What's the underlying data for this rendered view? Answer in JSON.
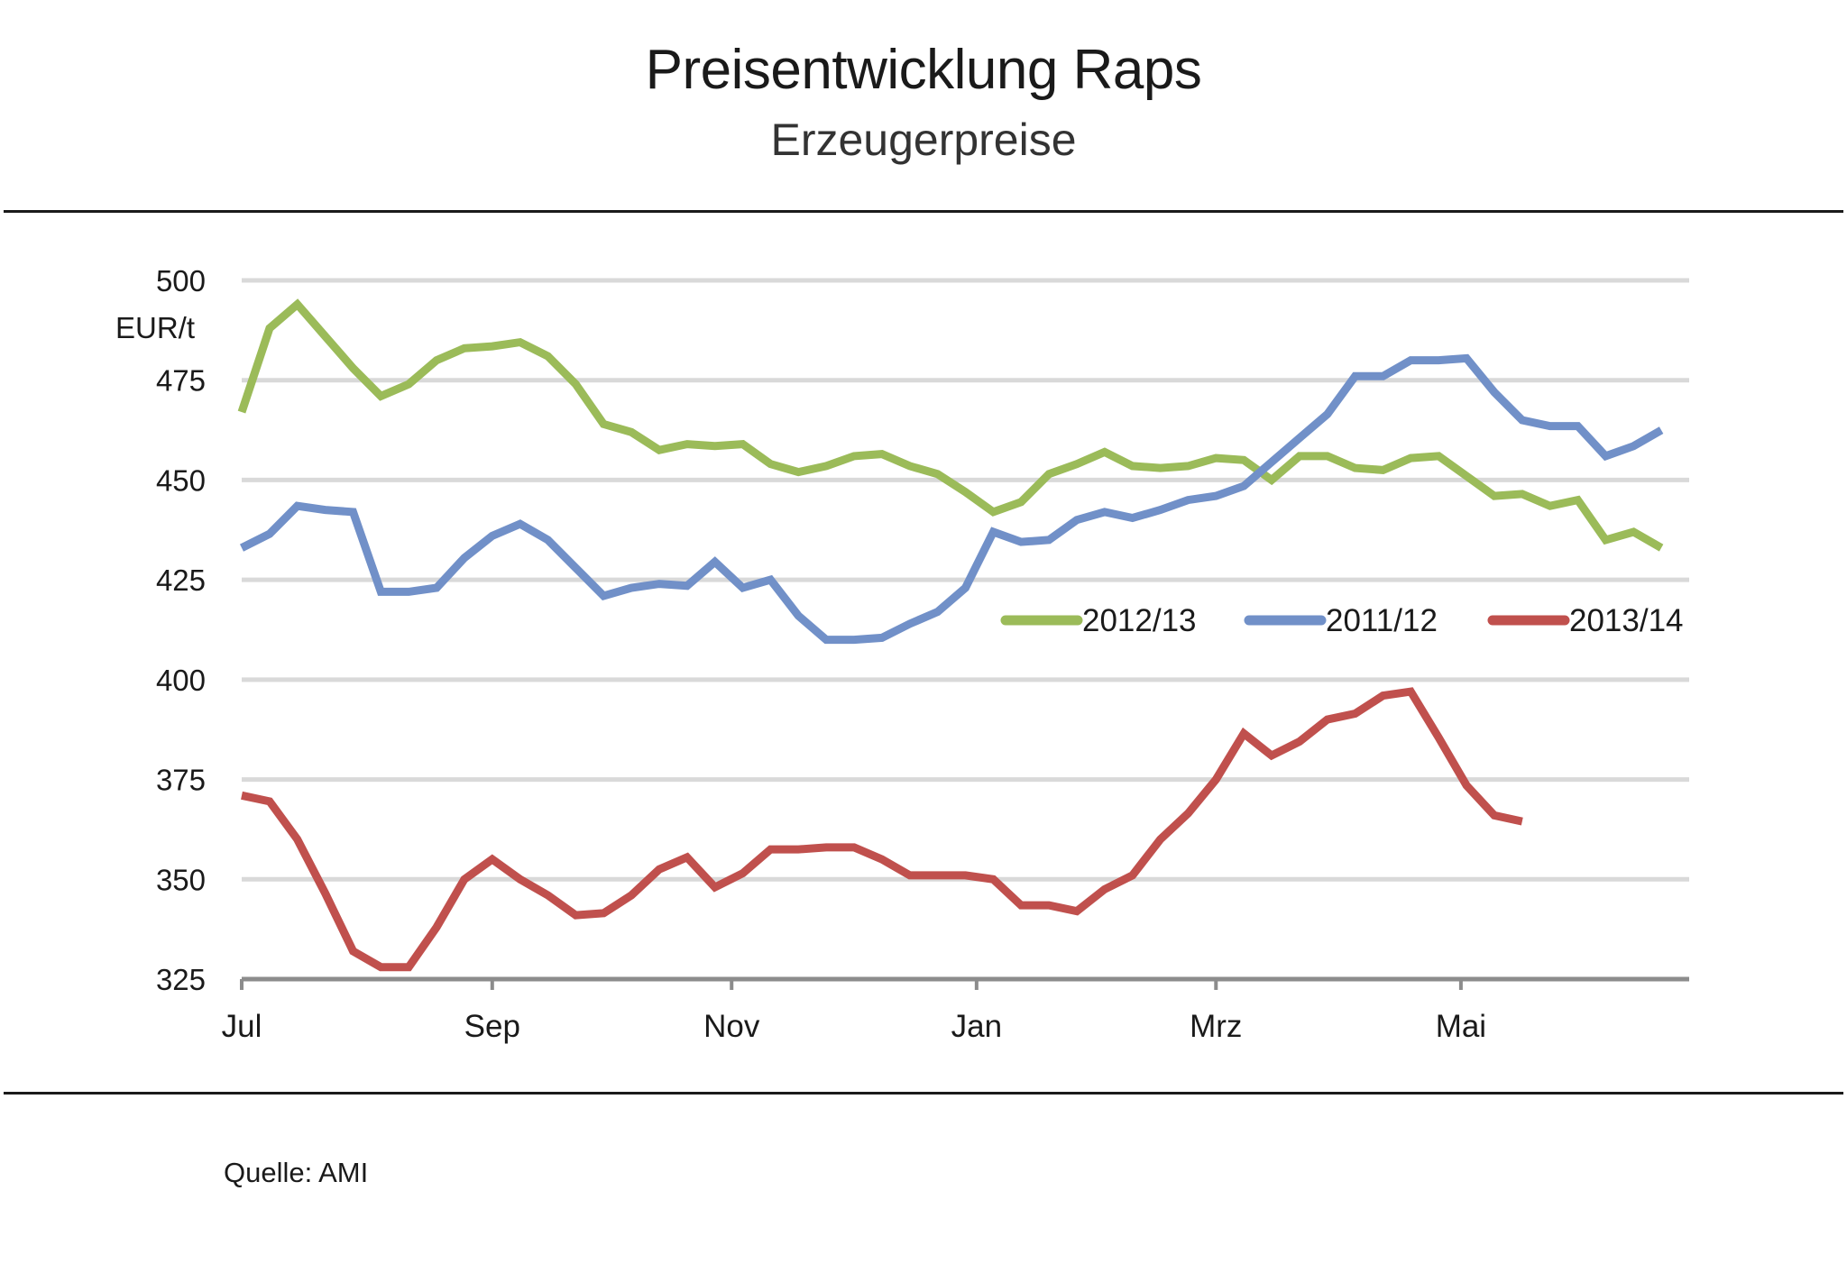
{
  "chart_data": {
    "type": "line",
    "title": "Preisentwicklung Raps",
    "subtitle": "Erzeugerpreise",
    "ylabel": "EUR/t",
    "ylim": [
      325,
      500
    ],
    "yticks": [
      325,
      350,
      375,
      400,
      425,
      450,
      475,
      500
    ],
    "grid": true,
    "x_count": 53,
    "month_ticks": [
      {
        "label": "Jul",
        "index": 0
      },
      {
        "label": "Sep",
        "index": 9
      },
      {
        "label": "Nov",
        "index": 17.6
      },
      {
        "label": "Jan",
        "index": 26.4
      },
      {
        "label": "Mrz",
        "index": 35
      },
      {
        "label": "Mai",
        "index": 43.8
      }
    ],
    "legend_position": "middle-right",
    "series": [
      {
        "name": "2012/13",
        "color": "#9bbb59",
        "values": [
          467,
          488,
          494,
          486,
          478,
          471,
          474,
          480,
          483,
          483.5,
          484.5,
          481,
          474,
          464,
          462,
          457.5,
          459,
          458.5,
          459,
          454,
          452,
          453.5,
          456,
          456.5,
          453.5,
          451.5,
          447,
          442,
          444.5,
          451.5,
          454,
          457,
          453.5,
          453,
          453.5,
          455.5,
          455,
          450,
          456,
          456,
          453,
          452.5,
          455.5,
          456,
          451,
          446,
          446.5,
          443.5,
          445,
          435,
          437,
          433
        ]
      },
      {
        "name": "2011/12",
        "color": "#7190c8",
        "values": [
          433,
          436.5,
          443.5,
          442.5,
          442,
          422,
          422,
          423,
          430.5,
          436,
          439,
          435,
          428,
          421,
          423,
          424,
          423.5,
          429.5,
          423,
          425,
          416,
          410,
          410,
          410.5,
          414,
          417,
          423,
          437,
          434.5,
          435,
          440,
          442,
          440.5,
          442.5,
          445,
          446,
          448.5,
          454.5,
          460.5,
          466.5,
          476,
          476,
          480,
          480,
          480.5,
          472,
          465,
          463.5,
          463.5,
          456,
          458.5,
          462.5
        ]
      },
      {
        "name": "2013/14",
        "color": "#c0504d",
        "values": [
          371,
          369.5,
          360,
          346.5,
          332,
          328,
          328,
          338,
          350,
          355,
          350,
          346,
          341,
          341.5,
          346,
          352.5,
          355.5,
          348,
          351.5,
          357.5,
          357.5,
          358,
          358,
          355,
          351,
          351,
          351,
          350,
          343.5,
          343.5,
          342,
          347.5,
          351,
          360,
          366.5,
          375,
          386.5,
          381,
          384.5,
          390,
          391.5,
          396,
          397,
          385.5,
          373.5,
          366,
          364.5
        ]
      }
    ]
  },
  "source_text": "Quelle: AMI"
}
